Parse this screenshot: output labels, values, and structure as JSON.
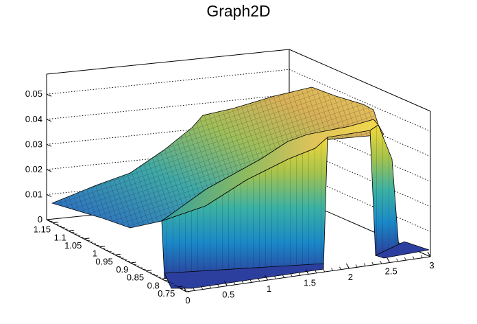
{
  "chart_data": {
    "type": "surface",
    "title": "Graph2D",
    "xlabel": "",
    "ylabel": "",
    "zlabel": "",
    "x_ticks": [
      "0",
      "0.5",
      "1",
      "1.5",
      "2",
      "2.5",
      "3"
    ],
    "y_ticks": [
      "0.75",
      "0.8",
      "0.85",
      "0.9",
      "0.95",
      "1",
      "1.05",
      "1.1",
      "1.15"
    ],
    "z_ticks": [
      "0",
      "0.01",
      "0.02",
      "0.03",
      "0.04",
      "0.05"
    ],
    "xlim": [
      0,
      3
    ],
    "ylim": [
      0.72,
      1.17
    ],
    "zlim": [
      0,
      0.058
    ],
    "colormap": "parula",
    "grid": true,
    "surface_profile": {
      "x": [
        0.0,
        0.5,
        0.9,
        1.25,
        1.5,
        1.6,
        1.9,
        2.2,
        2.45,
        2.6,
        3.0
      ],
      "z_ridge": [
        0.004,
        0.012,
        0.022,
        0.034,
        0.04,
        0.045,
        0.048,
        0.046,
        0.043,
        0.035,
        0.0
      ],
      "z_front": [
        0.0,
        0.0,
        0.0,
        0.0,
        0.0,
        0.036,
        0.038,
        0.038,
        0.036,
        0.0,
        0.0
      ]
    }
  }
}
